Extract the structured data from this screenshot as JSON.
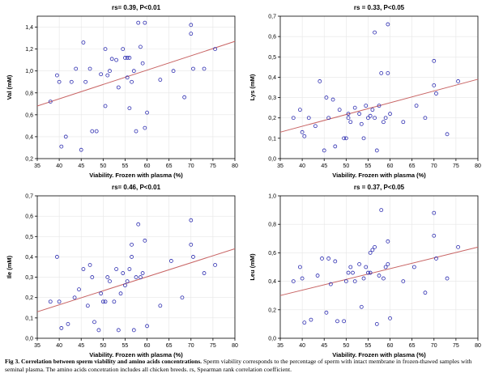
{
  "chart_data": [
    {
      "type": "scatter",
      "title": "rs= 0.39, P<0.01",
      "xlabel": "Viability. Frozen with plasma (%)",
      "ylabel": "Val (mM)",
      "xlim": [
        35,
        80
      ],
      "ylim": [
        0.2,
        1.5
      ],
      "xticks": [
        35,
        40,
        45,
        50,
        55,
        60,
        65,
        70,
        75,
        80
      ],
      "yticks": [
        0.2,
        0.4,
        0.6,
        0.8,
        1.0,
        1.2,
        1.4
      ],
      "ytick_labels": [
        "0,2",
        "0,4",
        "0,6",
        "0,8",
        "1,0",
        "1,2",
        "1,4"
      ],
      "regression_line": [
        [
          35,
          0.68
        ],
        [
          80,
          1.27
        ]
      ],
      "points": [
        [
          38,
          0.72
        ],
        [
          39.5,
          0.96
        ],
        [
          40,
          0.9
        ],
        [
          40.5,
          0.31
        ],
        [
          41.5,
          0.4
        ],
        [
          42.8,
          0.9
        ],
        [
          43.8,
          1.02
        ],
        [
          45,
          0.28
        ],
        [
          45.5,
          1.26
        ],
        [
          46,
          0.9
        ],
        [
          47,
          1.02
        ],
        [
          47.5,
          0.45
        ],
        [
          48.5,
          0.45
        ],
        [
          49.5,
          0.97
        ],
        [
          50.5,
          0.68
        ],
        [
          50.5,
          1.2
        ],
        [
          51,
          0.96
        ],
        [
          51.5,
          1.0
        ],
        [
          52,
          1.11
        ],
        [
          53,
          1.1
        ],
        [
          53.5,
          0.85
        ],
        [
          54.5,
          1.2
        ],
        [
          55,
          1.12
        ],
        [
          55.5,
          1.12
        ],
        [
          55.5,
          0.94
        ],
        [
          56,
          1.12
        ],
        [
          56,
          0.66
        ],
        [
          56.5,
          0.9
        ],
        [
          57,
          1.0
        ],
        [
          57.5,
          0.45
        ],
        [
          58,
          1.44
        ],
        [
          58.5,
          1.22
        ],
        [
          59,
          1.07
        ],
        [
          59.5,
          0.48
        ],
        [
          59.5,
          1.44
        ],
        [
          60,
          0.62
        ],
        [
          63,
          0.92
        ],
        [
          66,
          1.0
        ],
        [
          68.5,
          0.76
        ],
        [
          70,
          1.42
        ],
        [
          70,
          1.34
        ],
        [
          70.5,
          1.02
        ],
        [
          73,
          1.02
        ],
        [
          75.5,
          1.2
        ]
      ]
    },
    {
      "type": "scatter",
      "title": "rs = 0.33, P<0.05",
      "xlabel": "Viability. Frozen with plasma (%)",
      "ylabel": "Lys (mM)",
      "xlim": [
        35,
        80
      ],
      "ylim": [
        0,
        0.7
      ],
      "xticks": [
        35,
        40,
        45,
        50,
        55,
        60,
        65,
        70,
        75,
        80
      ],
      "yticks": [
        0.0,
        0.1,
        0.2,
        0.3,
        0.4,
        0.5,
        0.6,
        0.7
      ],
      "ytick_labels": [
        "0,0",
        "0,1",
        "0,2",
        "0,3",
        "0,4",
        "0,5",
        "0,6",
        "0,7"
      ],
      "regression_line": [
        [
          35,
          0.13
        ],
        [
          80,
          0.39
        ]
      ],
      "points": [
        [
          38,
          0.2
        ],
        [
          39.5,
          0.24
        ],
        [
          40,
          0.13
        ],
        [
          40.5,
          0.11
        ],
        [
          41.5,
          0.2
        ],
        [
          43,
          0.16
        ],
        [
          44,
          0.38
        ],
        [
          45,
          0.04
        ],
        [
          45.5,
          0.3
        ],
        [
          46,
          0.2
        ],
        [
          47,
          0.29
        ],
        [
          47.5,
          0.06
        ],
        [
          48.5,
          0.24
        ],
        [
          49.5,
          0.1
        ],
        [
          50,
          0.1
        ],
        [
          50.5,
          0.22
        ],
        [
          50.5,
          0.2
        ],
        [
          51,
          0.18
        ],
        [
          52,
          0.25
        ],
        [
          53,
          0.22
        ],
        [
          53.5,
          0.17
        ],
        [
          54,
          0.1
        ],
        [
          54.5,
          0.26
        ],
        [
          55,
          0.2
        ],
        [
          55.5,
          0.21
        ],
        [
          56,
          0.24
        ],
        [
          56.5,
          0.62
        ],
        [
          56.5,
          0.2
        ],
        [
          57,
          0.04
        ],
        [
          57.5,
          0.26
        ],
        [
          58,
          0.42
        ],
        [
          58.5,
          0.18
        ],
        [
          59,
          0.2
        ],
        [
          59.5,
          0.66
        ],
        [
          59.5,
          0.42
        ],
        [
          60,
          0.22
        ],
        [
          63,
          0.18
        ],
        [
          66,
          0.26
        ],
        [
          68,
          0.2
        ],
        [
          70,
          0.48
        ],
        [
          70,
          0.36
        ],
        [
          70.5,
          0.32
        ],
        [
          73,
          0.12
        ],
        [
          75.5,
          0.38
        ]
      ]
    },
    {
      "type": "scatter",
      "title": "rs= 0.46, P<0.01",
      "xlabel": "Viability. Frozen with plasma (%)",
      "ylabel": "Ile (mM)",
      "xlim": [
        35,
        80
      ],
      "ylim": [
        0,
        0.7
      ],
      "xticks": [
        35,
        40,
        45,
        50,
        55,
        60,
        65,
        70,
        75,
        80
      ],
      "yticks": [
        0.0,
        0.1,
        0.2,
        0.3,
        0.4,
        0.5,
        0.6,
        0.7
      ],
      "ytick_labels": [
        "0,0",
        "0,1",
        "0,2",
        "0,3",
        "0,4",
        "0,5",
        "0,6",
        "0,7"
      ],
      "regression_line": [
        [
          35,
          0.13
        ],
        [
          80,
          0.44
        ]
      ],
      "points": [
        [
          38,
          0.18
        ],
        [
          39.5,
          0.4
        ],
        [
          40,
          0.18
        ],
        [
          40.5,
          0.05
        ],
        [
          42,
          0.07
        ],
        [
          43.5,
          0.2
        ],
        [
          44.5,
          0.24
        ],
        [
          45.5,
          0.34
        ],
        [
          46.5,
          0.16
        ],
        [
          47,
          0.36
        ],
        [
          47.5,
          0.3
        ],
        [
          48,
          0.08
        ],
        [
          49,
          0.04
        ],
        [
          49.5,
          0.22
        ],
        [
          50,
          0.18
        ],
        [
          50.5,
          0.18
        ],
        [
          51,
          0.3
        ],
        [
          51.5,
          0.28
        ],
        [
          52.5,
          0.18
        ],
        [
          53,
          0.34
        ],
        [
          53.5,
          0.04
        ],
        [
          54,
          0.22
        ],
        [
          54.5,
          0.32
        ],
        [
          55,
          0.26
        ],
        [
          55.5,
          0.28
        ],
        [
          56,
          0.34
        ],
        [
          56.5,
          0.4
        ],
        [
          56.5,
          0.46
        ],
        [
          57,
          0.04
        ],
        [
          57.5,
          0.3
        ],
        [
          58,
          0.56
        ],
        [
          58.5,
          0.3
        ],
        [
          59,
          0.32
        ],
        [
          59.5,
          0.48
        ],
        [
          60,
          0.06
        ],
        [
          63,
          0.16
        ],
        [
          65.5,
          0.38
        ],
        [
          68,
          0.2
        ],
        [
          70,
          0.58
        ],
        [
          70,
          0.46
        ],
        [
          70.5,
          0.4
        ],
        [
          73,
          0.32
        ],
        [
          75.5,
          0.36
        ]
      ]
    },
    {
      "type": "scatter",
      "title": "rs = 0.37, P<0.05",
      "xlabel": "Viability. Frozen with plasma (%)",
      "ylabel": "Leu (mM)",
      "xlim": [
        35,
        80
      ],
      "ylim": [
        0,
        1.0
      ],
      "xticks": [
        35,
        40,
        45,
        50,
        55,
        60,
        65,
        70,
        75,
        80
      ],
      "yticks": [
        0.0,
        0.2,
        0.4,
        0.6,
        0.8,
        1.0
      ],
      "ytick_labels": [
        "0,0",
        "0,2",
        "0,4",
        "0,6",
        "0,8",
        "1,0"
      ],
      "regression_line": [
        [
          35,
          0.3
        ],
        [
          80,
          0.64
        ]
      ],
      "points": [
        [
          38,
          0.4
        ],
        [
          39.5,
          0.5
        ],
        [
          40,
          0.42
        ],
        [
          40.5,
          0.11
        ],
        [
          42,
          0.13
        ],
        [
          43.5,
          0.44
        ],
        [
          44.5,
          0.56
        ],
        [
          45.5,
          0.18
        ],
        [
          46,
          0.56
        ],
        [
          46.5,
          0.38
        ],
        [
          47.5,
          0.54
        ],
        [
          48,
          0.12
        ],
        [
          49.5,
          0.12
        ],
        [
          50,
          0.4
        ],
        [
          50.5,
          0.46
        ],
        [
          51,
          0.5
        ],
        [
          51.5,
          0.46
        ],
        [
          52,
          0.4
        ],
        [
          53,
          0.52
        ],
        [
          53.5,
          0.22
        ],
        [
          54,
          0.42
        ],
        [
          54.5,
          0.5
        ],
        [
          55,
          0.46
        ],
        [
          55.5,
          0.6
        ],
        [
          55.5,
          0.46
        ],
        [
          56,
          0.62
        ],
        [
          56.5,
          0.64
        ],
        [
          57,
          0.1
        ],
        [
          57.5,
          0.44
        ],
        [
          58,
          0.9
        ],
        [
          58.5,
          0.42
        ],
        [
          59,
          0.5
        ],
        [
          59.5,
          0.52
        ],
        [
          59.5,
          0.68
        ],
        [
          60,
          0.14
        ],
        [
          63,
          0.4
        ],
        [
          65.5,
          0.5
        ],
        [
          68,
          0.32
        ],
        [
          70,
          0.88
        ],
        [
          70,
          0.72
        ],
        [
          70.5,
          0.56
        ],
        [
          73,
          0.42
        ],
        [
          75.5,
          0.64
        ]
      ]
    }
  ],
  "caption": {
    "label": "Fig 3. Correlation between sperm viability and amino acids concentrations.",
    "text": "Sperm viability corresponds to the percentage of sperm with intact membrane in frozen-thawed samples with seminal plasma. The amino acids concetration includes all chicken breeds. rs, Spearman rank correlation coefficient."
  },
  "colors": {
    "point": "#2b2bb0",
    "regression": "#c86464",
    "axis": "#000000",
    "grid": "#e6e6e6"
  }
}
